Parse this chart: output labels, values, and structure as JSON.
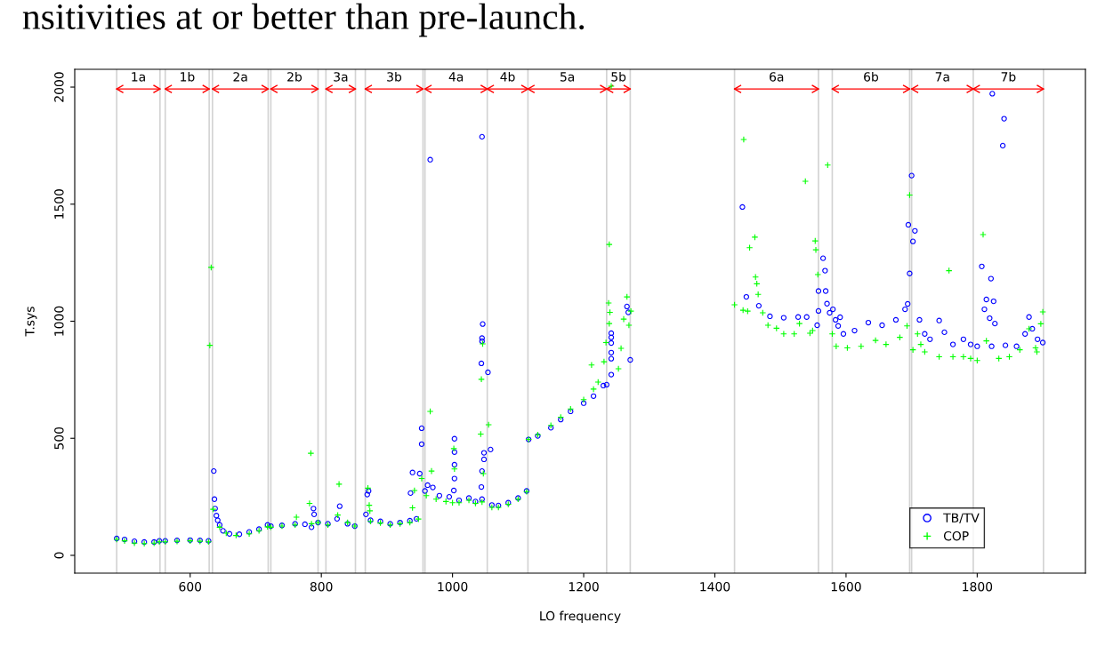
{
  "chart_data": {
    "type": "scatter",
    "xlabel": "LO frequency",
    "ylabel": "T.sys",
    "annotations": [
      "nsitivities at or better than pre-launch."
    ],
    "ref_lines": [
      {
        "axis": "x",
        "value": 488,
        "label": "1a",
        "color": "#d3d3d3"
      },
      {
        "axis": "x",
        "value": 554,
        "color": "#d3d3d3"
      },
      {
        "axis": "x",
        "value": 562,
        "label": "1b",
        "color": "#d3d3d3"
      },
      {
        "axis": "x",
        "value": 629,
        "color": "#d3d3d3"
      },
      {
        "axis": "x",
        "value": 634,
        "label": "2a",
        "color": "#d3d3d3"
      },
      {
        "axis": "x",
        "value": 719,
        "color": "#d3d3d3"
      },
      {
        "axis": "x",
        "value": 723,
        "label": "2b",
        "color": "#d3d3d3"
      },
      {
        "axis": "x",
        "value": 795,
        "color": "#d3d3d3"
      },
      {
        "axis": "x",
        "value": 807,
        "label": "3a",
        "color": "#d3d3d3"
      },
      {
        "axis": "x",
        "value": 852,
        "color": "#d3d3d3"
      },
      {
        "axis": "x",
        "value": 867,
        "label": "3b",
        "color": "#d3d3d3"
      },
      {
        "axis": "x",
        "value": 955,
        "color": "#d3d3d3"
      },
      {
        "axis": "x",
        "value": 958,
        "label": "4a",
        "color": "#d3d3d3"
      },
      {
        "axis": "x",
        "value": 1053,
        "label": "4b",
        "color": "#d3d3d3"
      },
      {
        "axis": "x",
        "value": 1115,
        "label": "5a",
        "color": "#d3d3d3"
      },
      {
        "axis": "x",
        "value": 1235,
        "label": "5b",
        "color": "#d3d3d3"
      },
      {
        "axis": "x",
        "value": 1271,
        "color": "#d3d3d3"
      },
      {
        "axis": "x",
        "value": 1430,
        "label": "6a",
        "color": "#d3d3d3"
      },
      {
        "axis": "x",
        "value": 1558,
        "color": "#d3d3d3"
      },
      {
        "axis": "x",
        "value": 1579,
        "label": "6b",
        "color": "#d3d3d3"
      },
      {
        "axis": "x",
        "value": 1697,
        "color": "#d3d3d3"
      },
      {
        "axis": "x",
        "value": 1700,
        "label": "7a",
        "color": "#d3d3d3"
      },
      {
        "axis": "x",
        "value": 1794,
        "label": "7b",
        "color": "#d3d3d3"
      },
      {
        "axis": "x",
        "value": 1901,
        "color": "#d3d3d3"
      }
    ],
    "xlim": [
      424,
      1965
    ],
    "ylim": [
      -76,
      2076
    ],
    "xticks": [
      600,
      800,
      1000,
      1200,
      1400,
      1600,
      1800
    ],
    "yticks": [
      0,
      500,
      1000,
      1500,
      2000
    ],
    "legend": "bottom right",
    "series": [
      {
        "name": "TB/TV",
        "color": "#0000ff",
        "marker": "circle",
        "x": [
          488,
          500,
          515,
          530,
          545,
          553,
          562,
          580,
          600,
          615,
          628,
          636,
          637,
          638,
          640,
          642,
          645,
          650,
          660,
          675,
          690,
          705,
          718,
          723,
          740,
          760,
          775,
          785,
          788,
          789,
          795,
          810,
          824,
          828,
          840,
          851,
          868,
          870,
          872,
          875,
          890,
          905,
          920,
          935,
          945,
          936,
          939,
          950,
          953,
          953,
          958,
          962,
          966,
          970,
          980,
          995,
          1003,
          1003,
          1003,
          1003,
          1002,
          1010,
          1025,
          1035,
          1045,
          1045,
          1046,
          1045,
          1045,
          1044,
          1054,
          1048,
          1048,
          1045,
          1044,
          1058,
          1060,
          1070,
          1085,
          1100,
          1113,
          1116,
          1130,
          1150,
          1165,
          1180,
          1200,
          1215,
          1230,
          1235,
          1242,
          1242,
          1242,
          1242,
          1242,
          1242,
          1266,
          1268,
          1271,
          1442,
          1448,
          1467,
          1484,
          1505,
          1527,
          1540,
          1556,
          1565,
          1568,
          1558,
          1558,
          1569,
          1571,
          1575,
          1580,
          1584,
          1588,
          1591,
          1596,
          1613,
          1634,
          1655,
          1676,
          1690,
          1694,
          1700,
          1695,
          1705,
          1702,
          1697,
          1712,
          1720,
          1728,
          1742,
          1750,
          1763,
          1779,
          1790,
          1823,
          1841,
          1839,
          1807,
          1821,
          1814,
          1825,
          1811,
          1819,
          1827,
          1800,
          1822,
          1843,
          1860,
          1873,
          1879,
          1884,
          1892,
          1900
        ],
        "values": [
          72,
          68,
          60,
          57,
          57,
          62,
          62,
          64,
          65,
          64,
          62,
          360,
          240,
          200,
          170,
          150,
          130,
          105,
          92,
          90,
          100,
          112,
          130,
          125,
          128,
          135,
          133,
          120,
          200,
          175,
          140,
          135,
          156,
          210,
          135,
          125,
          175,
          260,
          275,
          150,
          145,
          135,
          140,
          148,
          156,
          266,
          354,
          349,
          543,
          475,
          275,
          300,
          1690,
          290,
          255,
          250,
          498,
          441,
          387,
          328,
          277,
          235,
          245,
          230,
          240,
          1788,
          988,
          928,
          915,
          820,
          782,
          438,
          410,
          360,
          292,
          452,
          215,
          213,
          225,
          245,
          275,
          495,
          510,
          545,
          580,
          615,
          650,
          680,
          725,
          729,
          772,
          840,
          866,
          907,
          931,
          949,
          1063,
          1038,
          835,
          1488,
          1104,
          1066,
          1021,
          1015,
          1018,
          1018,
          983,
          1269,
          1216,
          1044,
          1129,
          1129,
          1075,
          1036,
          1051,
          1006,
          980,
          1017,
          946,
          960,
          994,
          983,
          1006,
          1051,
          1074,
          1622,
          1412,
          1386,
          1341,
          1204,
          1006,
          946,
          923,
          1003,
          953,
          901,
          923,
          901,
          1972,
          1865,
          1750,
          1234,
          1182,
          1093,
          1085,
          1051,
          1013,
          990,
          893,
          893,
          897,
          893,
          946,
          1018,
          968,
          923,
          909
        ]
      },
      {
        "name": "COP",
        "color": "#00ff00",
        "marker": "cross",
        "x": [
          488,
          500,
          515,
          530,
          545,
          553,
          562,
          580,
          600,
          615,
          628,
          632,
          630,
          635,
          645,
          655,
          670,
          690,
          705,
          718,
          723,
          740,
          760,
          762,
          784,
          782,
          785,
          795,
          827,
          825,
          810,
          840,
          851,
          871,
          873,
          874,
          875,
          890,
          905,
          920,
          935,
          948,
          942,
          939,
          953,
          966,
          968,
          960,
          975,
          990,
          1000,
          1002,
          1003,
          1010,
          1025,
          1035,
          1045,
          1046,
          1044,
          1043,
          1055,
          1047,
          1060,
          1070,
          1085,
          1100,
          1113,
          1116,
          1130,
          1150,
          1165,
          1180,
          1200,
          1215,
          1222,
          1212,
          1231,
          1239,
          1242,
          1238,
          1240,
          1239,
          1234,
          1257,
          1253,
          1266,
          1261,
          1269,
          1272,
          1430,
          1444,
          1453,
          1461,
          1443,
          1450,
          1462,
          1464,
          1466,
          1473,
          1481,
          1494,
          1505,
          1521,
          1529,
          1538,
          1545,
          1549,
          1553,
          1554,
          1557,
          1572,
          1579,
          1585,
          1602,
          1623,
          1645,
          1661,
          1682,
          1693,
          1697,
          1702,
          1709,
          1714,
          1720,
          1742,
          1757,
          1763,
          1779,
          1790,
          1809,
          1814,
          1800,
          1833,
          1849,
          1865,
          1879,
          1889,
          1891,
          1900,
          1897
        ],
        "values": [
          68,
          62,
          52,
          50,
          52,
          58,
          58,
          60,
          62,
          60,
          58,
          1230,
          897,
          197,
          120,
          95,
          85,
          92,
          105,
          122,
          120,
          125,
          130,
          163,
          436,
          222,
          135,
          140,
          304,
          172,
          130,
          140,
          125,
          287,
          214,
          190,
          145,
          138,
          130,
          135,
          140,
          155,
          277,
          203,
          328,
          615,
          360,
          255,
          240,
          230,
          225,
          456,
          369,
          225,
          235,
          222,
          228,
          903,
          752,
          518,
          558,
          349,
          205,
          205,
          218,
          240,
          272,
          495,
          515,
          555,
          590,
          625,
          665,
          710,
          740,
          813,
          827,
          1328,
          2004,
          1078,
          1038,
          990,
          909,
          884,
          797,
          1104,
          1009,
          983,
          1043,
          1070,
          1776,
          1314,
          1359,
          1047,
          1043,
          1189,
          1160,
          1115,
          1036,
          983,
          970,
          946,
          946,
          990,
          1598,
          949,
          960,
          1343,
          1305,
          1199,
          1667,
          946,
          893,
          886,
          893,
          918,
          901,
          931,
          980,
          1539,
          878,
          946,
          901,
          869,
          848,
          1216,
          848,
          848,
          841,
          1370,
          916,
          832,
          841,
          848,
          878,
          968,
          886,
          869,
          1040,
          989
        ]
      }
    ]
  }
}
